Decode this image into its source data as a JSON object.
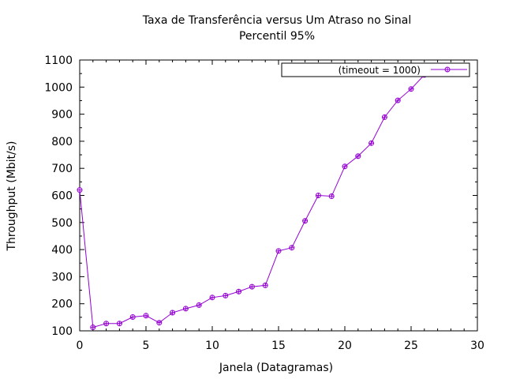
{
  "chart_data": {
    "type": "line",
    "title": "Taxa de Transferência versus Um Atraso no Sinal",
    "subtitle": "Percentil 95%",
    "xlabel": "Janela (Datagramas)",
    "ylabel": "Throughput (Mbit/s)",
    "xlim": [
      0,
      30
    ],
    "ylim": [
      100,
      1100
    ],
    "xticks": [
      "0",
      "5",
      "10",
      "15",
      "20",
      "25",
      "30"
    ],
    "yticks": [
      "100",
      "200",
      "300",
      "400",
      "500",
      "600",
      "700",
      "800",
      "900",
      "1000",
      "1100"
    ],
    "grid": false,
    "legend_position": "top-right",
    "series": [
      {
        "name": "(timeout = 1000)",
        "color": "#9400d3",
        "marker": "circle-plus",
        "x": [
          0,
          1,
          2,
          3,
          4,
          5,
          6,
          7,
          8,
          9,
          10,
          11,
          12,
          13,
          14,
          15,
          16,
          17,
          18,
          19,
          20,
          21,
          22,
          23,
          24,
          25,
          26
        ],
        "y": [
          620,
          113,
          127,
          127,
          151,
          156,
          130,
          167,
          182,
          195,
          223,
          230,
          245,
          263,
          268,
          395,
          407,
          506,
          600,
          597,
          707,
          745,
          793,
          889,
          951,
          993,
          1045
        ]
      }
    ]
  }
}
